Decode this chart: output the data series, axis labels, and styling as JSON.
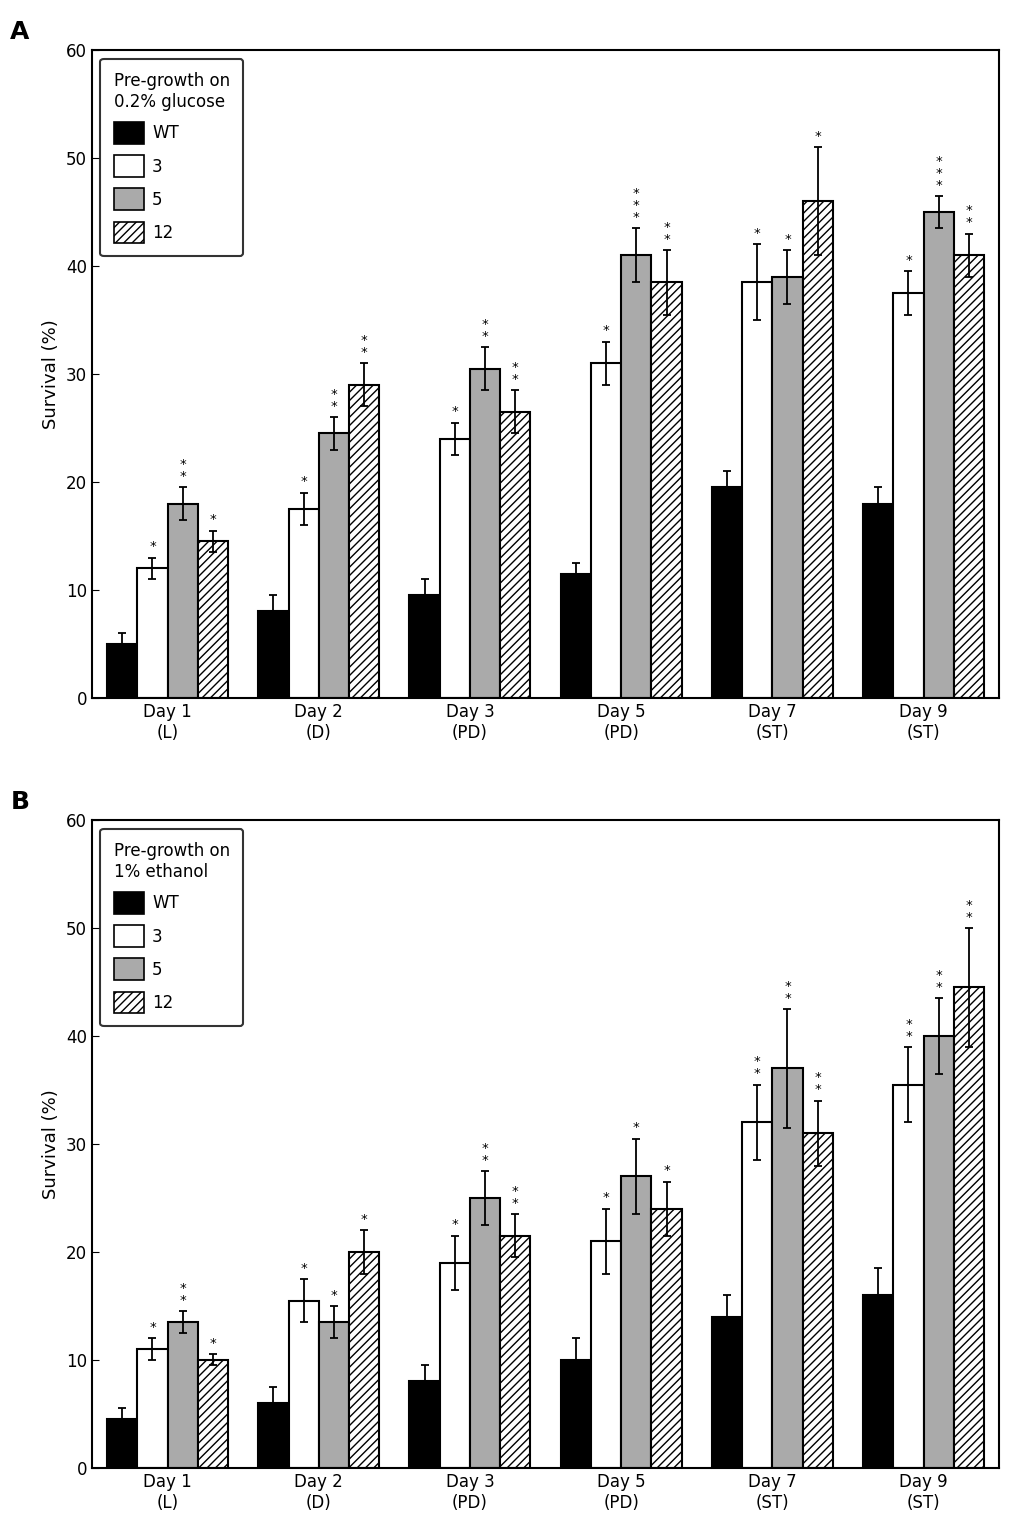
{
  "panel_A": {
    "title": "A",
    "legend_title": "Pre-growth on\n0.2% glucose",
    "categories": [
      "Day 1\n(L)",
      "Day 2\n(D)",
      "Day 3\n(PD)",
      "Day 5\n(PD)",
      "Day 7\n(ST)",
      "Day 9\n(ST)"
    ],
    "WT": [
      5.0,
      8.0,
      9.5,
      11.5,
      19.5,
      18.0
    ],
    "S3": [
      12.0,
      17.5,
      24.0,
      31.0,
      38.5,
      37.5
    ],
    "S5": [
      18.0,
      24.5,
      30.5,
      41.0,
      39.0,
      45.0
    ],
    "S12": [
      14.5,
      29.0,
      26.5,
      38.5,
      46.0,
      41.0
    ],
    "WT_err": [
      1.0,
      1.5,
      1.5,
      1.0,
      1.5,
      1.5
    ],
    "S3_err": [
      1.0,
      1.5,
      1.5,
      2.0,
      3.5,
      2.0
    ],
    "S5_err": [
      1.5,
      1.5,
      2.0,
      2.5,
      2.5,
      1.5
    ],
    "S12_err": [
      1.0,
      2.0,
      2.0,
      3.0,
      5.0,
      2.0
    ],
    "S3_stars": [
      "*",
      "*",
      "*",
      "*",
      "*",
      "*"
    ],
    "S5_stars": [
      "**",
      "**",
      "**",
      "***",
      "*",
      "***"
    ],
    "S12_stars": [
      "*",
      "**",
      "**",
      "**",
      "*",
      "**"
    ]
  },
  "panel_B": {
    "title": "B",
    "legend_title": "Pre-growth on\n1% ethanol",
    "categories": [
      "Day 1\n(L)",
      "Day 2\n(D)",
      "Day 3\n(PD)",
      "Day 5\n(PD)",
      "Day 7\n(ST)",
      "Day 9\n(ST)"
    ],
    "WT": [
      4.5,
      6.0,
      8.0,
      10.0,
      14.0,
      16.0
    ],
    "S3": [
      11.0,
      15.5,
      19.0,
      21.0,
      32.0,
      35.5
    ],
    "S5": [
      13.5,
      13.5,
      25.0,
      27.0,
      37.0,
      40.0
    ],
    "S12": [
      10.0,
      20.0,
      21.5,
      24.0,
      31.0,
      44.5
    ],
    "WT_err": [
      1.0,
      1.5,
      1.5,
      2.0,
      2.0,
      2.5
    ],
    "S3_err": [
      1.0,
      2.0,
      2.5,
      3.0,
      3.5,
      3.5
    ],
    "S5_err": [
      1.0,
      1.5,
      2.5,
      3.5,
      5.5,
      3.5
    ],
    "S12_err": [
      0.5,
      2.0,
      2.0,
      2.5,
      3.0,
      5.5
    ],
    "S3_stars": [
      "*",
      "*",
      "*",
      "*",
      "**",
      "**"
    ],
    "S5_stars": [
      "**",
      "*",
      "**",
      "*",
      "**",
      "**"
    ],
    "S12_stars": [
      "*",
      "*",
      "**",
      "*",
      "**",
      "**"
    ]
  },
  "ylim": [
    0,
    60
  ],
  "yticks": [
    0,
    10,
    20,
    30,
    40,
    50,
    60
  ],
  "ylabel": "Survival (%)",
  "bar_width": 0.2,
  "edgecolor": "#000000"
}
